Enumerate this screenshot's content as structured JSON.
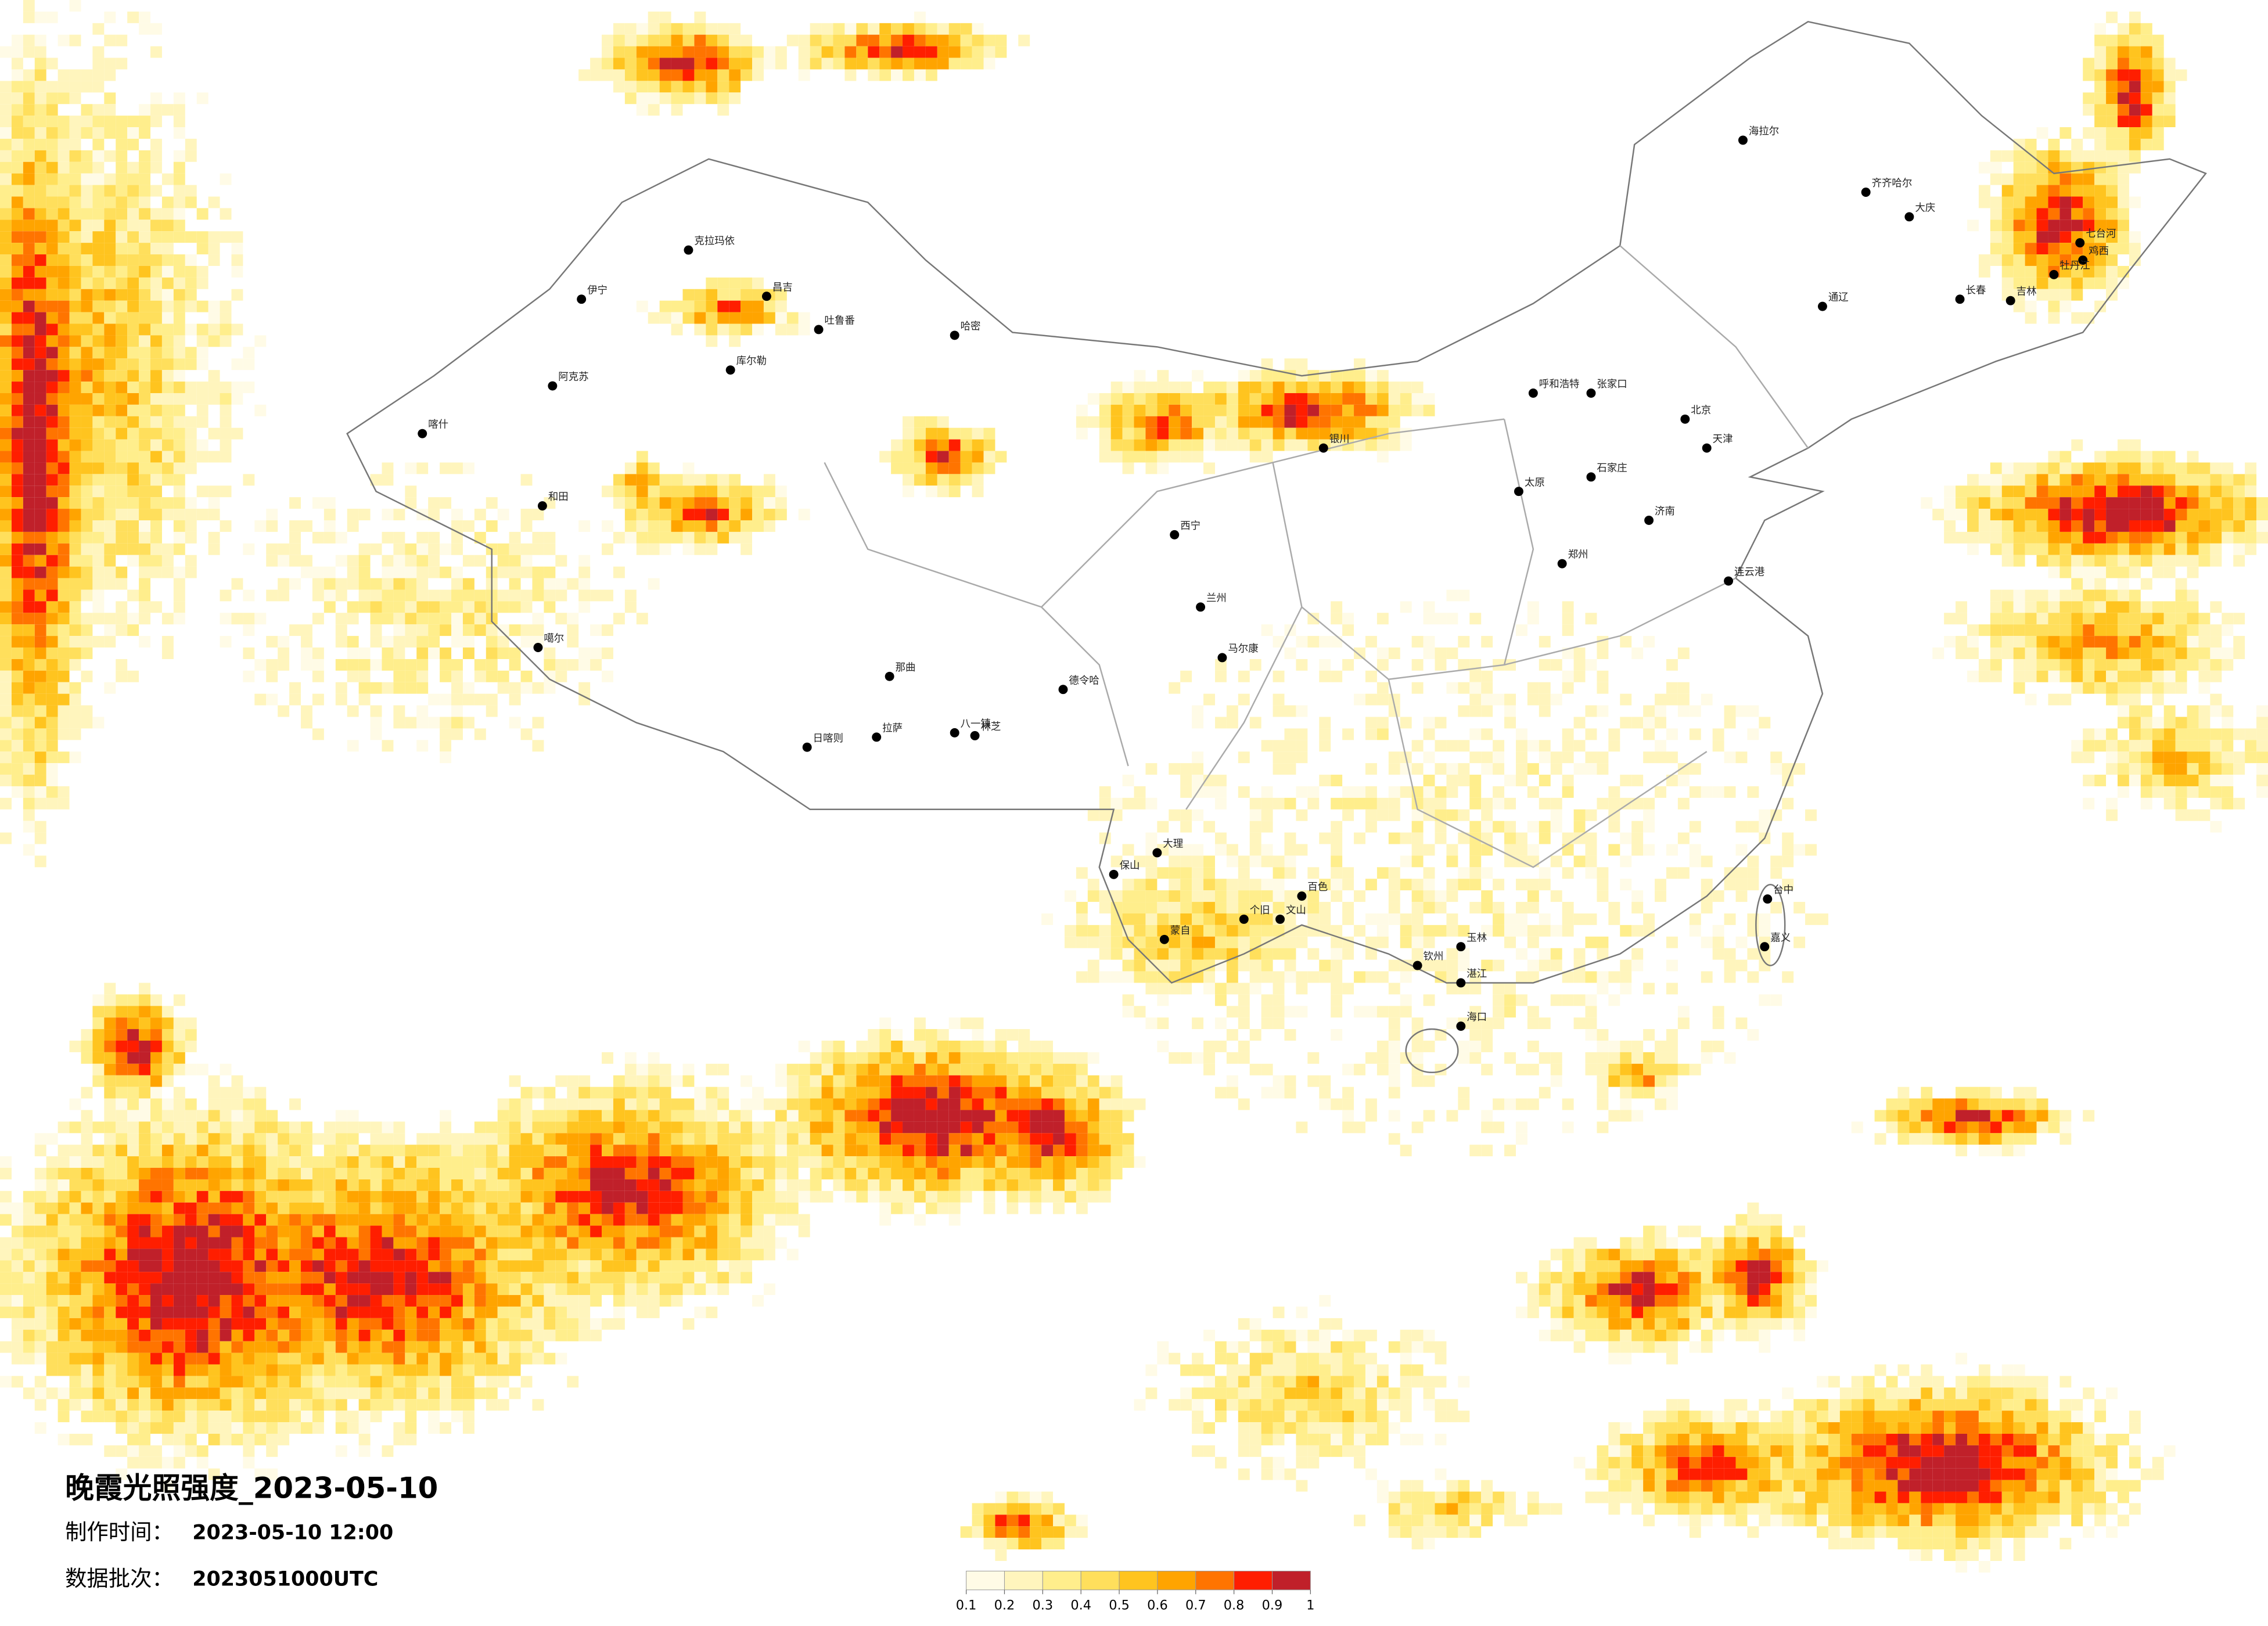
{
  "title": "晚霞光照强度_2023-05-10",
  "info": [
    {
      "label": "制作时间：",
      "value": "2023-05-10 12:00"
    },
    {
      "label": "数据批次：",
      "value": "2023051000UTC"
    }
  ],
  "legend": {
    "ticks": [
      0.1,
      0.2,
      0.3,
      0.4,
      0.5,
      0.6,
      0.7,
      0.8,
      0.9,
      1
    ],
    "colors": [
      "#fffbe6",
      "#fff5bd",
      "#ffee8c",
      "#ffdf5c",
      "#ffc41f",
      "#ffa400",
      "#ff7400",
      "#ff1e00",
      "#c0202a"
    ]
  },
  "cities": [
    "伊宁",
    "克拉玛依",
    "昌吉",
    "吐鲁番",
    "哈密",
    "库尔勒",
    "阿克苏",
    "喀什",
    "和田",
    "噶尔",
    "日喀则",
    "拉萨",
    "八一镇",
    "林芝",
    "那曲",
    "德令哈",
    "西宁",
    "兰州",
    "银川",
    "呼和浩特",
    "张家口",
    "北京",
    "天津",
    "石家庄",
    "太原",
    "郑州",
    "济南",
    "连云港",
    "海拉尔",
    "齐齐哈尔",
    "大庆",
    "长春",
    "吉林",
    "七台河",
    "鸡西",
    "牡丹江",
    "通辽",
    "马尔康",
    "大理",
    "保山",
    "蒙自",
    "个旧",
    "文山",
    "百色",
    "玉林",
    "钦州",
    "湛江",
    "海口",
    "台中",
    "嘉义"
  ]
}
